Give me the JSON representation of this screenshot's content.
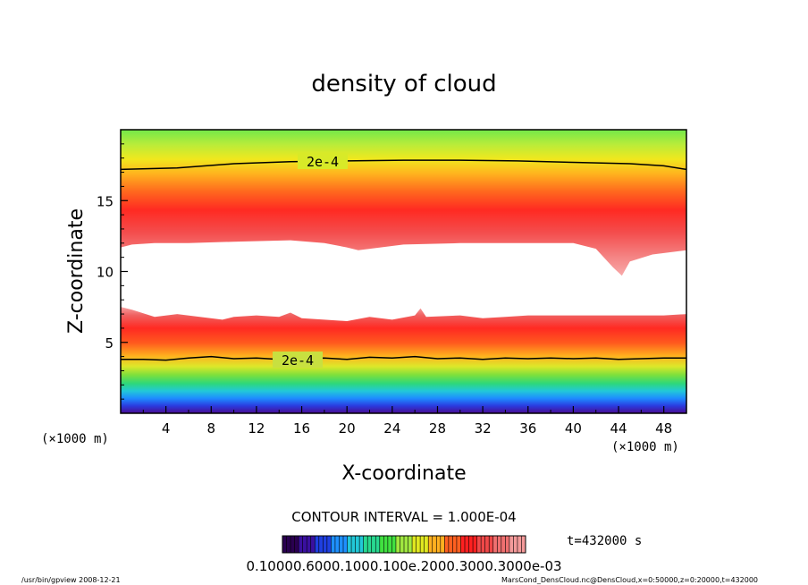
{
  "chart_data": {
    "type": "heatmap",
    "title": "density of cloud",
    "xlabel": "X-coordinate",
    "ylabel": "Z-coordinate",
    "x_unit": "(×1000 m)",
    "y_unit": "(×1000 m)",
    "xlim": [
      0,
      50
    ],
    "ylim": [
      0,
      20
    ],
    "x_ticks": [
      4,
      8,
      12,
      16,
      20,
      24,
      28,
      32,
      36,
      40,
      44,
      48
    ],
    "y_ticks": [
      5,
      10,
      15
    ],
    "contour_label_upper": "2e-4",
    "contour_label_lower": "2e-4",
    "upper_contour": {
      "x": [
        0,
        5,
        10,
        15,
        20,
        25,
        30,
        35,
        40,
        45,
        48,
        50
      ],
      "z": [
        17.2,
        17.3,
        17.6,
        17.75,
        17.8,
        17.85,
        17.85,
        17.8,
        17.7,
        17.6,
        17.45,
        17.2
      ]
    },
    "upper_cloud_bottom": {
      "x": [
        0,
        1,
        3,
        6,
        10,
        15,
        18,
        20,
        21,
        25,
        30,
        35,
        40,
        42,
        43.5,
        44.3,
        45,
        47,
        50
      ],
      "z": [
        11.7,
        11.9,
        12.0,
        12.0,
        12.1,
        12.2,
        12.0,
        11.7,
        11.5,
        11.9,
        12.0,
        12.0,
        12.0,
        11.6,
        10.3,
        9.7,
        10.7,
        11.2,
        11.5
      ]
    },
    "lower_cloud_top": {
      "x": [
        0,
        1,
        3,
        5,
        7,
        9,
        10,
        12,
        14,
        15,
        16,
        18,
        20,
        22,
        24,
        26,
        26.5,
        27,
        30,
        32,
        34,
        36,
        40,
        44,
        48,
        50
      ],
      "z": [
        7.5,
        7.3,
        6.8,
        7.0,
        6.8,
        6.6,
        6.8,
        6.9,
        6.8,
        7.1,
        6.7,
        6.6,
        6.5,
        6.8,
        6.6,
        6.9,
        7.4,
        6.8,
        6.9,
        6.7,
        6.8,
        6.9,
        6.9,
        6.9,
        6.9,
        7.0
      ]
    },
    "lower_contour": {
      "x": [
        0,
        2,
        4,
        6,
        8,
        10,
        12,
        14,
        16,
        18,
        20,
        22,
        24,
        26,
        28,
        30,
        32,
        34,
        36,
        38,
        40,
        42,
        44,
        46,
        48,
        50
      ],
      "z": [
        3.8,
        3.8,
        3.75,
        3.9,
        4.0,
        3.85,
        3.9,
        3.8,
        3.85,
        3.9,
        3.8,
        3.95,
        3.9,
        4.0,
        3.85,
        3.9,
        3.8,
        3.9,
        3.85,
        3.9,
        3.85,
        3.9,
        3.8,
        3.85,
        3.9,
        3.9
      ]
    },
    "colorbar": {
      "label": "0.10000.6000.1000.100e.2000.3000.3000e-03",
      "colors": [
        "#2a0050",
        "#3a10a0",
        "#1f3fe0",
        "#1e90ff",
        "#22c8d8",
        "#28d890",
        "#40e040",
        "#a0e840",
        "#e0e820",
        "#ffb020",
        "#ff6020",
        "#ff2020",
        "#f04848",
        "#f07070",
        "#f49a9a"
      ]
    },
    "contour_interval": "CONTOUR INTERVAL = 1.000E-04",
    "time_label": "t=432000 s",
    "footer_left": "/usr/bin/gpview   2008-12-21",
    "footer_right": "MarsCond_DensCloud.nc@DensCloud,x=0:50000,z=0:20000,t=432000"
  }
}
